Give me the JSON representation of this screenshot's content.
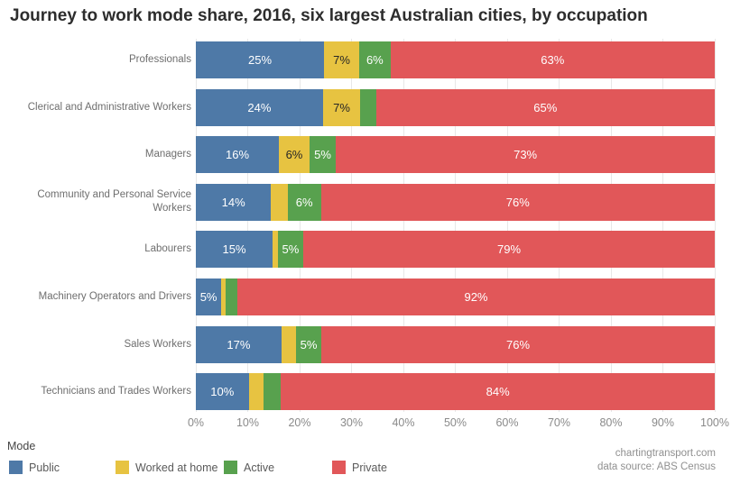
{
  "title": "Journey to work mode share, 2016, six largest Australian cities, by occupation",
  "chart_data": {
    "type": "bar",
    "orientation": "horizontal",
    "stacked": true,
    "unit": "%",
    "xlabel": "",
    "ylabel": "",
    "x_axis": {
      "min": 0,
      "max": 100,
      "tick_step": 10,
      "ticks": [
        "0%",
        "10%",
        "20%",
        "30%",
        "40%",
        "50%",
        "60%",
        "70%",
        "80%",
        "90%",
        "100%"
      ],
      "grid": true
    },
    "series_names": [
      "Public",
      "Worked at home",
      "Active",
      "Private"
    ],
    "colors": {
      "Public": "#4e79a7",
      "Worked at home": "#e7c341",
      "Active": "#58a14e",
      "Private": "#e15759"
    },
    "categories": [
      "Professionals",
      "Clerical and Administrative Workers",
      "Managers",
      "Community and Personal Service Workers",
      "Labourers",
      "Machinery Operators and Drivers",
      "Sales Workers",
      "Technicians and Trades Workers"
    ],
    "rows": [
      {
        "category": "Professionals",
        "segments": [
          {
            "series": "Public",
            "value": 24.7,
            "label": "25%"
          },
          {
            "series": "Worked at home",
            "value": 6.8,
            "label": "7%"
          },
          {
            "series": "Active",
            "value": 6.0,
            "label": "6%"
          },
          {
            "series": "Private",
            "value": 62.5,
            "label": "63%"
          }
        ]
      },
      {
        "category": "Clerical and Administrative Workers",
        "segments": [
          {
            "series": "Public",
            "value": 24.5,
            "label": "24%"
          },
          {
            "series": "Worked at home",
            "value": 7.2,
            "label": "7%"
          },
          {
            "series": "Active",
            "value": 3.0,
            "label": ""
          },
          {
            "series": "Private",
            "value": 65.3,
            "label": "65%"
          }
        ]
      },
      {
        "category": "Managers",
        "segments": [
          {
            "series": "Public",
            "value": 16.0,
            "label": "16%"
          },
          {
            "series": "Worked at home",
            "value": 5.9,
            "label": "6%"
          },
          {
            "series": "Active",
            "value": 5.1,
            "label": "5%"
          },
          {
            "series": "Private",
            "value": 73.0,
            "label": "73%"
          }
        ]
      },
      {
        "category": "Community and Personal Service Workers",
        "segments": [
          {
            "series": "Public",
            "value": 14.5,
            "label": "14%"
          },
          {
            "series": "Worked at home",
            "value": 3.2,
            "label": ""
          },
          {
            "series": "Active",
            "value": 6.4,
            "label": "6%"
          },
          {
            "series": "Private",
            "value": 75.9,
            "label": "76%"
          }
        ]
      },
      {
        "category": "Labourers",
        "segments": [
          {
            "series": "Public",
            "value": 14.8,
            "label": "15%"
          },
          {
            "series": "Worked at home",
            "value": 1.0,
            "label": ""
          },
          {
            "series": "Active",
            "value": 4.9,
            "label": "5%"
          },
          {
            "series": "Private",
            "value": 79.3,
            "label": "79%"
          }
        ]
      },
      {
        "category": "Machinery Operators and Drivers",
        "segments": [
          {
            "series": "Public",
            "value": 4.9,
            "label": "5%"
          },
          {
            "series": "Worked at home",
            "value": 0.9,
            "label": ""
          },
          {
            "series": "Active",
            "value": 2.2,
            "label": ""
          },
          {
            "series": "Private",
            "value": 92.0,
            "label": "92%"
          }
        ]
      },
      {
        "category": "Sales Workers",
        "segments": [
          {
            "series": "Public",
            "value": 16.5,
            "label": "17%"
          },
          {
            "series": "Worked at home",
            "value": 2.8,
            "label": ""
          },
          {
            "series": "Active",
            "value": 4.9,
            "label": "5%"
          },
          {
            "series": "Private",
            "value": 75.8,
            "label": "76%"
          }
        ]
      },
      {
        "category": "Technicians and Trades Workers",
        "segments": [
          {
            "series": "Public",
            "value": 10.2,
            "label": "10%"
          },
          {
            "series": "Worked at home",
            "value": 2.9,
            "label": ""
          },
          {
            "series": "Active",
            "value": 3.3,
            "label": ""
          },
          {
            "series": "Private",
            "value": 83.6,
            "label": "84%"
          }
        ]
      }
    ],
    "legend": {
      "title": "Mode",
      "position": "bottom-left",
      "entries": [
        {
          "label": "Public",
          "color": "#4e79a7"
        },
        {
          "label": "Worked at home",
          "color": "#e7c341"
        },
        {
          "label": "Active",
          "color": "#58a14e"
        },
        {
          "label": "Private",
          "color": "#e15759"
        }
      ]
    }
  },
  "footer": {
    "line1": "chartingtransport.com",
    "line2": "data source: ABS Census"
  }
}
